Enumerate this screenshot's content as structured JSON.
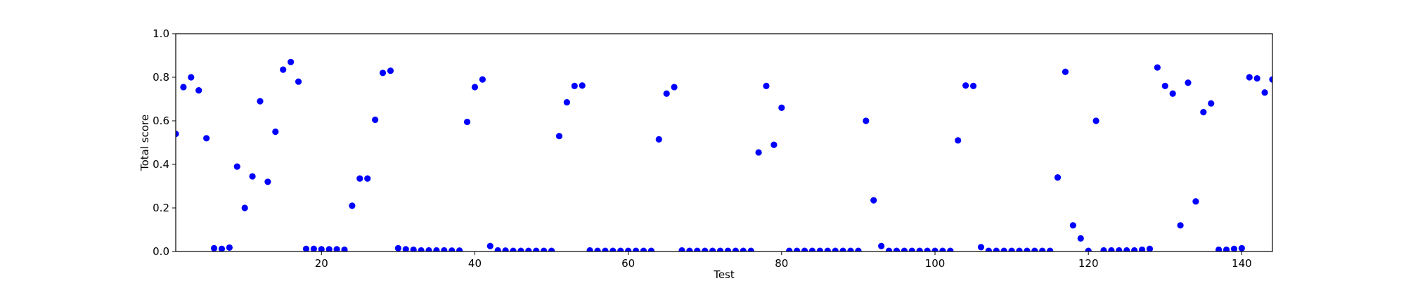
{
  "chart_data": {
    "type": "scatter",
    "title": "",
    "xlabel": "Test",
    "ylabel": "Total score",
    "xlim": [
      1,
      144
    ],
    "ylim": [
      0.0,
      1.0
    ],
    "xticks": [
      20,
      40,
      60,
      80,
      100,
      120,
      140
    ],
    "yticks": [
      0.0,
      0.2,
      0.4,
      0.6,
      0.8,
      1.0
    ],
    "xtick_labels": [
      "20",
      "40",
      "60",
      "80",
      "100",
      "120",
      "140"
    ],
    "ytick_labels": [
      "0.0",
      "0.2",
      "0.4",
      "0.6",
      "0.8",
      "1.0"
    ],
    "grid": false,
    "legend": "none",
    "marker_color": "#0000ff",
    "x": [
      1,
      2,
      3,
      4,
      5,
      6,
      7,
      8,
      9,
      10,
      11,
      12,
      13,
      14,
      15,
      16,
      17,
      18,
      19,
      20,
      21,
      22,
      23,
      24,
      25,
      26,
      27,
      28,
      29,
      30,
      31,
      32,
      33,
      34,
      35,
      36,
      37,
      38,
      39,
      40,
      41,
      42,
      43,
      44,
      45,
      46,
      47,
      48,
      49,
      50,
      51,
      52,
      53,
      54,
      55,
      56,
      57,
      58,
      59,
      60,
      61,
      62,
      63,
      64,
      65,
      66,
      67,
      68,
      69,
      70,
      71,
      72,
      73,
      74,
      75,
      76,
      77,
      78,
      79,
      80,
      81,
      82,
      83,
      84,
      85,
      86,
      87,
      88,
      89,
      90,
      91,
      92,
      93,
      94,
      95,
      96,
      97,
      98,
      99,
      100,
      101,
      102,
      103,
      104,
      105,
      106,
      107,
      108,
      109,
      110,
      111,
      112,
      113,
      114,
      115,
      116,
      117,
      118,
      119,
      120,
      121,
      122,
      123,
      124,
      125,
      126,
      127,
      128,
      129,
      130,
      131,
      132,
      133,
      134,
      135,
      136,
      137,
      138,
      139,
      140,
      141,
      142,
      143,
      144
    ],
    "y": [
      0.54,
      0.755,
      0.8,
      0.74,
      0.52,
      0.015,
      0.012,
      0.018,
      0.39,
      0.2,
      0.345,
      0.69,
      0.32,
      0.55,
      0.835,
      0.87,
      0.78,
      0.012,
      0.012,
      0.01,
      0.01,
      0.01,
      0.008,
      0.21,
      0.335,
      0.335,
      0.605,
      0.82,
      0.83,
      0.015,
      0.01,
      0.008,
      0.005,
      0.005,
      0.005,
      0.005,
      0.004,
      0.004,
      0.595,
      0.755,
      0.79,
      0.025,
      0.005,
      0.004,
      0.003,
      0.003,
      0.003,
      0.003,
      0.003,
      0.003,
      0.53,
      0.685,
      0.76,
      0.762,
      0.005,
      0.003,
      0.003,
      0.003,
      0.003,
      0.003,
      0.003,
      0.003,
      0.003,
      0.515,
      0.725,
      0.755,
      0.005,
      0.003,
      0.003,
      0.003,
      0.003,
      0.003,
      0.003,
      0.003,
      0.003,
      0.003,
      0.455,
      0.76,
      0.49,
      0.66,
      0.003,
      0.003,
      0.003,
      0.003,
      0.003,
      0.003,
      0.003,
      0.003,
      0.003,
      0.003,
      0.6,
      0.235,
      0.025,
      0.003,
      0.003,
      0.003,
      0.003,
      0.003,
      0.003,
      0.003,
      0.003,
      0.003,
      0.51,
      0.762,
      0.76,
      0.02,
      0.003,
      0.003,
      0.003,
      0.003,
      0.003,
      0.003,
      0.003,
      0.003,
      0.003,
      0.34,
      0.825,
      0.12,
      0.06,
      0.003,
      0.6,
      0.005,
      0.005,
      0.005,
      0.005,
      0.005,
      0.008,
      0.012,
      0.845,
      0.76,
      0.725,
      0.12,
      0.775,
      0.23,
      0.64,
      0.68,
      0.008,
      0.008,
      0.012,
      0.015,
      0.8,
      0.795,
      0.73,
      0.79
    ]
  }
}
